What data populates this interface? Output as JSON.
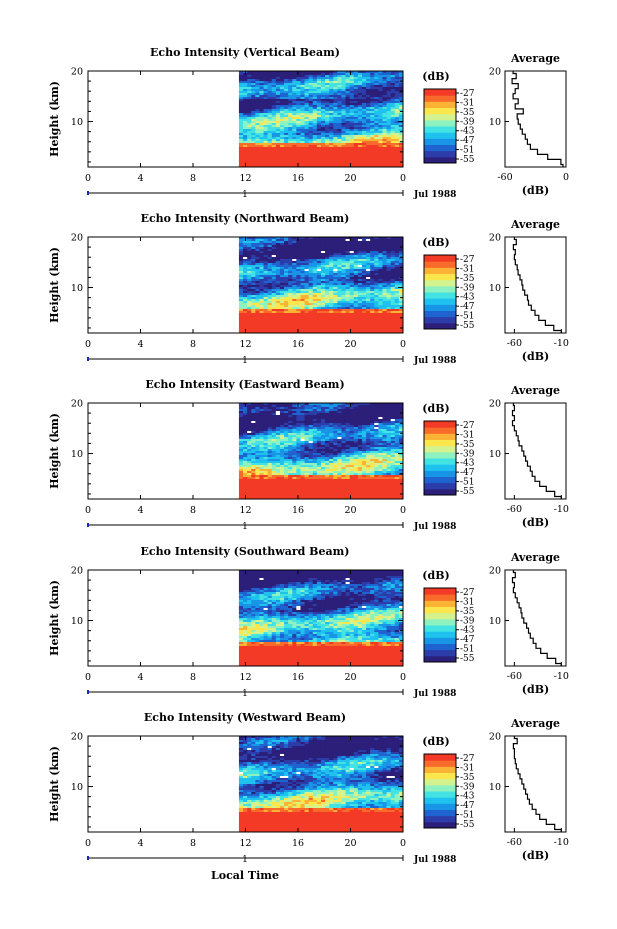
{
  "figure": {
    "xlabel": "Local Time",
    "date_label": "Jul 1988",
    "day_marker": "1",
    "colorbar_unit": "(dB)",
    "colorbar_ticks": [
      "-27",
      "-31",
      "-35",
      "-39",
      "-43",
      "-47",
      "-51",
      "-55"
    ],
    "colormap": [
      "#2b1f7a",
      "#2c3ca8",
      "#1f63d0",
      "#1895e6",
      "#1fc2ee",
      "#43e3e3",
      "#8ef2c0",
      "#d4f28d",
      "#fbe64d",
      "#fbb335",
      "#f96b2a",
      "#f23a26"
    ],
    "profile_title": "Average",
    "profile_xlabel": "(dB)"
  },
  "chart_data": [
    {
      "type": "heatmap",
      "title": "Echo Intensity (Vertical Beam)",
      "ylabel": "Height (km)",
      "x_ticks": [
        "0",
        "4",
        "8",
        "12",
        "16",
        "20",
        "0"
      ],
      "y_ticks": [
        "20",
        "10"
      ],
      "xlim": [
        0,
        24
      ],
      "ylim": [
        1,
        20
      ],
      "data_start_hour": 11.5,
      "profile": {
        "x_ticks": [
          "-60",
          "0"
        ],
        "xlim": [
          -60,
          0
        ],
        "heights": [
          1,
          2,
          3,
          4,
          5,
          6,
          7,
          8,
          9,
          10,
          11,
          12,
          13,
          14,
          15,
          16,
          17,
          18,
          19,
          20
        ],
        "values": [
          -3,
          -5,
          -18,
          -28,
          -35,
          -38,
          -40,
          -43,
          -45,
          -47,
          -48,
          -42,
          -50,
          -47,
          -52,
          -50,
          -47,
          -53,
          -49,
          -52
        ]
      }
    },
    {
      "type": "heatmap",
      "title": "Echo Intensity (Northward Beam)",
      "ylabel": "Height (km)",
      "x_ticks": [
        "0",
        "4",
        "8",
        "12",
        "16",
        "20",
        "0"
      ],
      "y_ticks": [
        "20",
        "10"
      ],
      "xlim": [
        0,
        24
      ],
      "ylim": [
        1,
        20
      ],
      "data_start_hour": 11.5,
      "profile": {
        "x_ticks": [
          "-60",
          "-10"
        ],
        "xlim": [
          -70,
          -5
        ],
        "heights": [
          1,
          2,
          3,
          4,
          5,
          6,
          7,
          8,
          9,
          10,
          11,
          12,
          13,
          14,
          15,
          16,
          17,
          18,
          19,
          20
        ],
        "values": [
          -10,
          -18,
          -27,
          -34,
          -38,
          -42,
          -45,
          -46,
          -49,
          -51,
          -52,
          -54,
          -56,
          -57,
          -59,
          -60,
          -59,
          -61,
          -58,
          -60
        ]
      }
    },
    {
      "type": "heatmap",
      "title": "Echo Intensity (Eastward Beam)",
      "ylabel": "Height (km)",
      "x_ticks": [
        "0",
        "4",
        "8",
        "12",
        "16",
        "20",
        "0"
      ],
      "y_ticks": [
        "20",
        "10"
      ],
      "xlim": [
        0,
        24
      ],
      "ylim": [
        1,
        20
      ],
      "data_start_hour": 11.5,
      "profile": {
        "x_ticks": [
          "-60",
          "-10"
        ],
        "xlim": [
          -70,
          -5
        ],
        "heights": [
          1,
          2,
          3,
          4,
          5,
          6,
          7,
          8,
          9,
          10,
          11,
          12,
          13,
          14,
          15,
          16,
          17,
          18,
          19,
          20
        ],
        "values": [
          -10,
          -17,
          -26,
          -33,
          -38,
          -41,
          -43,
          -46,
          -48,
          -50,
          -52,
          -55,
          -56,
          -58,
          -60,
          -62,
          -60,
          -62,
          -60,
          -61
        ]
      }
    },
    {
      "type": "heatmap",
      "title": "Echo Intensity (Southward Beam)",
      "ylabel": "Height (km)",
      "x_ticks": [
        "0",
        "4",
        "8",
        "12",
        "16",
        "20",
        "0"
      ],
      "y_ticks": [
        "20",
        "10"
      ],
      "xlim": [
        0,
        24
      ],
      "ylim": [
        1,
        20
      ],
      "data_start_hour": 11.5,
      "profile": {
        "x_ticks": [
          "-60",
          "-10"
        ],
        "xlim": [
          -70,
          -5
        ],
        "heights": [
          1,
          2,
          3,
          4,
          5,
          6,
          7,
          8,
          9,
          10,
          11,
          12,
          13,
          14,
          15,
          16,
          17,
          18,
          19,
          20
        ],
        "values": [
          -10,
          -16,
          -25,
          -32,
          -37,
          -40,
          -43,
          -45,
          -47,
          -50,
          -52,
          -53,
          -55,
          -57,
          -59,
          -61,
          -60,
          -62,
          -59,
          -61
        ]
      }
    },
    {
      "type": "heatmap",
      "title": "Echo Intensity (Westward Beam)",
      "ylabel": "Height (km)",
      "x_ticks": [
        "0",
        "4",
        "8",
        "12",
        "16",
        "20",
        "0"
      ],
      "y_ticks": [
        "20",
        "10"
      ],
      "xlim": [
        0,
        24
      ],
      "ylim": [
        1,
        20
      ],
      "data_start_hour": 11.5,
      "profile": {
        "x_ticks": [
          "-60",
          "-10"
        ],
        "xlim": [
          -70,
          -5
        ],
        "heights": [
          1,
          2,
          3,
          4,
          5,
          6,
          7,
          8,
          9,
          10,
          11,
          12,
          13,
          14,
          15,
          16,
          17,
          18,
          19,
          20
        ],
        "values": [
          -10,
          -17,
          -26,
          -33,
          -37,
          -41,
          -44,
          -46,
          -48,
          -50,
          -52,
          -54,
          -56,
          -58,
          -59,
          -60,
          -60,
          -61,
          -57,
          -60
        ]
      }
    }
  ]
}
